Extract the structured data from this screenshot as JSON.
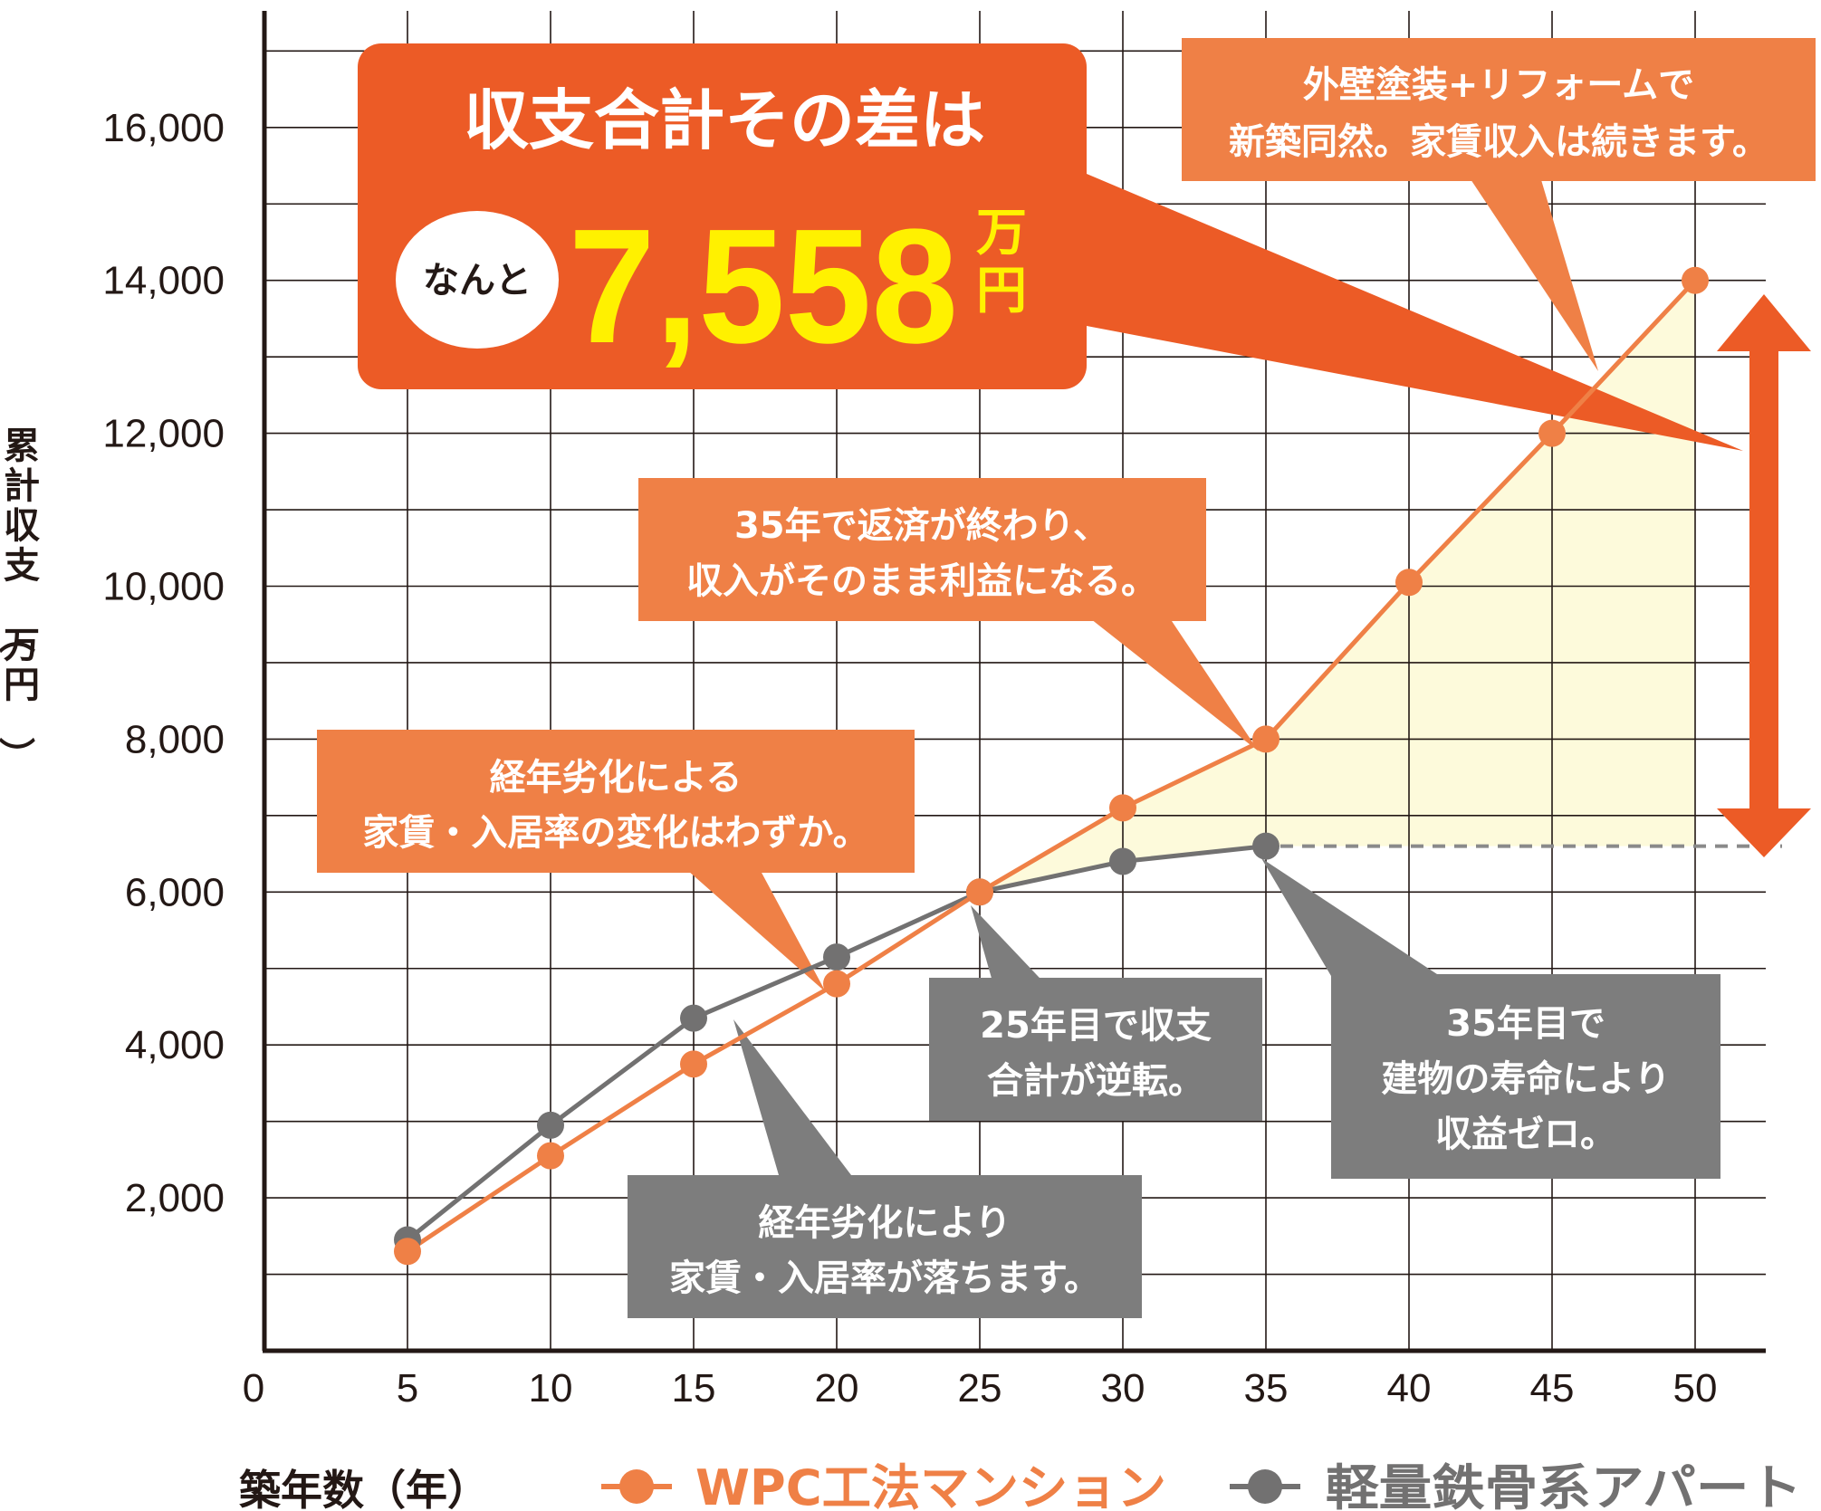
{
  "chart_data": {
    "type": "line",
    "xlabel": "築年数（年）",
    "ylabel": "累計収支（万円）",
    "x": [
      5,
      10,
      15,
      20,
      25,
      30,
      35,
      40,
      45,
      50
    ],
    "x_ticks": [
      "0",
      "5",
      "10",
      "15",
      "20",
      "25",
      "30",
      "35",
      "40",
      "45",
      "50"
    ],
    "y_ticks": [
      "2,000",
      "4,000",
      "6,000",
      "8,000",
      "10,000",
      "12,000",
      "14,000",
      "16,000"
    ],
    "xlim": [
      0,
      53
    ],
    "ylim": [
      0,
      17800
    ],
    "grid": true,
    "legend_position": "bottom",
    "series": [
      {
        "name": "WPC工法マンション",
        "color": "#ef8046",
        "points": [
          [
            5,
            1300
          ],
          [
            10,
            2550
          ],
          [
            15,
            3750
          ],
          [
            20,
            4800
          ],
          [
            25,
            6000
          ],
          [
            30,
            7100
          ],
          [
            35,
            8000
          ],
          [
            40,
            10050
          ],
          [
            45,
            12000
          ],
          [
            50,
            14000
          ]
        ]
      },
      {
        "name": "軽量鉄骨系アパート",
        "color": "#727171",
        "points": [
          [
            5,
            1450
          ],
          [
            10,
            2950
          ],
          [
            15,
            4350
          ],
          [
            20,
            5150
          ],
          [
            25,
            6000
          ],
          [
            30,
            6400
          ],
          [
            35,
            6600
          ]
        ]
      }
    ],
    "dashed_level": 6600,
    "highlight": {
      "headline": "収支合計その差は",
      "prefix": "なんと",
      "value": "7,558",
      "unit_top": "万",
      "unit_bottom": "円"
    },
    "annotations": [
      {
        "id": "reform",
        "lines": [
          "外壁塗装+リフォームで",
          "新築同然。家賃収入は続きます。"
        ]
      },
      {
        "id": "repay",
        "lines": [
          "35年で返済が終わり、",
          "収入がそのまま利益になる。"
        ]
      },
      {
        "id": "wpc-decline",
        "lines": [
          "経年劣化による",
          "家賃・入居率の変化はわずか。"
        ]
      },
      {
        "id": "reverse",
        "lines": [
          "25年目で収支",
          "合計が逆転。"
        ]
      },
      {
        "id": "lifespan",
        "lines": [
          "35年目で",
          "建物の寿命により",
          "収益ゼロ。"
        ]
      },
      {
        "id": "steel-decline",
        "lines": [
          "経年劣化により",
          "家賃・入居率が落ちます。"
        ]
      }
    ]
  },
  "colors": {
    "orange_line": "#ef8046",
    "gray_line": "#727171",
    "callout_orange": "#ef8046",
    "callout_gray": "#7d7d7d",
    "big_callout": "#ec5b26",
    "arrow": "#ec5b26",
    "fill_area": "#fdfadb",
    "number_yellow": "#fff100"
  }
}
